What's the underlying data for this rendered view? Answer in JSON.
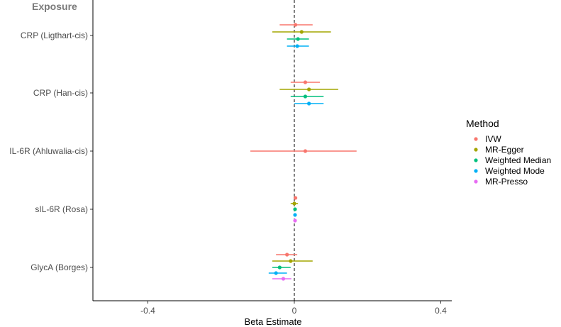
{
  "chart_data": {
    "type": "forest",
    "panel_title": "Exposure",
    "xlabel": "Beta Estimate",
    "xlim": [
      -0.55,
      0.43
    ],
    "xticks": [
      -0.4,
      0,
      0.4
    ],
    "xtick_labels": [
      "-0.4",
      "0",
      "0.4"
    ],
    "reference_line": 0,
    "legend": {
      "title": "Method",
      "position": "right",
      "entries": [
        {
          "name": "IVW",
          "color": "#F8766D"
        },
        {
          "name": "MR-Egger",
          "color": "#A3A500"
        },
        {
          "name": "Weighted Median",
          "color": "#00BF7D"
        },
        {
          "name": "Weighted Mode",
          "color": "#00B0F6"
        },
        {
          "name": "MR-Presso",
          "color": "#E76BF3"
        }
      ]
    },
    "categories": [
      "CRP (Ligthart-cis)",
      "CRP (Han-cis)",
      "IL-6R (Ahluwalia-cis)",
      "sIL-6R (Rosa)",
      "GlycA (Borges)"
    ],
    "series": [
      {
        "name": "IVW",
        "color": "#F8766D",
        "points": [
          {
            "category": "CRP (Ligthart-cis)",
            "estimate": 0.003,
            "lower": -0.04,
            "upper": 0.05
          },
          {
            "category": "CRP (Han-cis)",
            "estimate": 0.03,
            "lower": -0.01,
            "upper": 0.07
          },
          {
            "category": "IL-6R (Ahluwalia-cis)",
            "estimate": 0.03,
            "lower": -0.12,
            "upper": 0.17
          },
          {
            "category": "sIL-6R (Rosa)",
            "estimate": 0.003,
            "lower": -0.002,
            "upper": 0.008
          },
          {
            "category": "GlycA (Borges)",
            "estimate": -0.02,
            "lower": -0.05,
            "upper": 0.008
          }
        ]
      },
      {
        "name": "MR-Egger",
        "color": "#A3A500",
        "points": [
          {
            "category": "CRP (Ligthart-cis)",
            "estimate": 0.02,
            "lower": -0.06,
            "upper": 0.1
          },
          {
            "category": "CRP (Han-cis)",
            "estimate": 0.04,
            "lower": -0.04,
            "upper": 0.12
          },
          {
            "category": "sIL-6R (Rosa)",
            "estimate": 0.0,
            "lower": -0.01,
            "upper": 0.01
          },
          {
            "category": "GlycA (Borges)",
            "estimate": -0.01,
            "lower": -0.06,
            "upper": 0.05
          }
        ]
      },
      {
        "name": "Weighted Median",
        "color": "#00BF7D",
        "points": [
          {
            "category": "CRP (Ligthart-cis)",
            "estimate": 0.01,
            "lower": -0.02,
            "upper": 0.04
          },
          {
            "category": "CRP (Han-cis)",
            "estimate": 0.03,
            "lower": -0.01,
            "upper": 0.08
          },
          {
            "category": "sIL-6R (Rosa)",
            "estimate": 0.002,
            "lower": -0.002,
            "upper": 0.006
          },
          {
            "category": "GlycA (Borges)",
            "estimate": -0.04,
            "lower": -0.06,
            "upper": -0.01
          }
        ]
      },
      {
        "name": "Weighted Mode",
        "color": "#00B0F6",
        "points": [
          {
            "category": "CRP (Ligthart-cis)",
            "estimate": 0.008,
            "lower": -0.02,
            "upper": 0.04
          },
          {
            "category": "CRP (Han-cis)",
            "estimate": 0.04,
            "lower": 0.0,
            "upper": 0.08
          },
          {
            "category": "sIL-6R (Rosa)",
            "estimate": 0.002,
            "lower": -0.002,
            "upper": 0.006
          },
          {
            "category": "GlycA (Borges)",
            "estimate": -0.05,
            "lower": -0.07,
            "upper": -0.02
          }
        ]
      },
      {
        "name": "MR-Presso",
        "color": "#E76BF3",
        "points": [
          {
            "category": "sIL-6R (Rosa)",
            "estimate": 0.002,
            "lower": -0.002,
            "upper": 0.006
          },
          {
            "category": "GlycA (Borges)",
            "estimate": -0.03,
            "lower": -0.06,
            "upper": -0.008
          }
        ]
      }
    ],
    "grid": false
  }
}
